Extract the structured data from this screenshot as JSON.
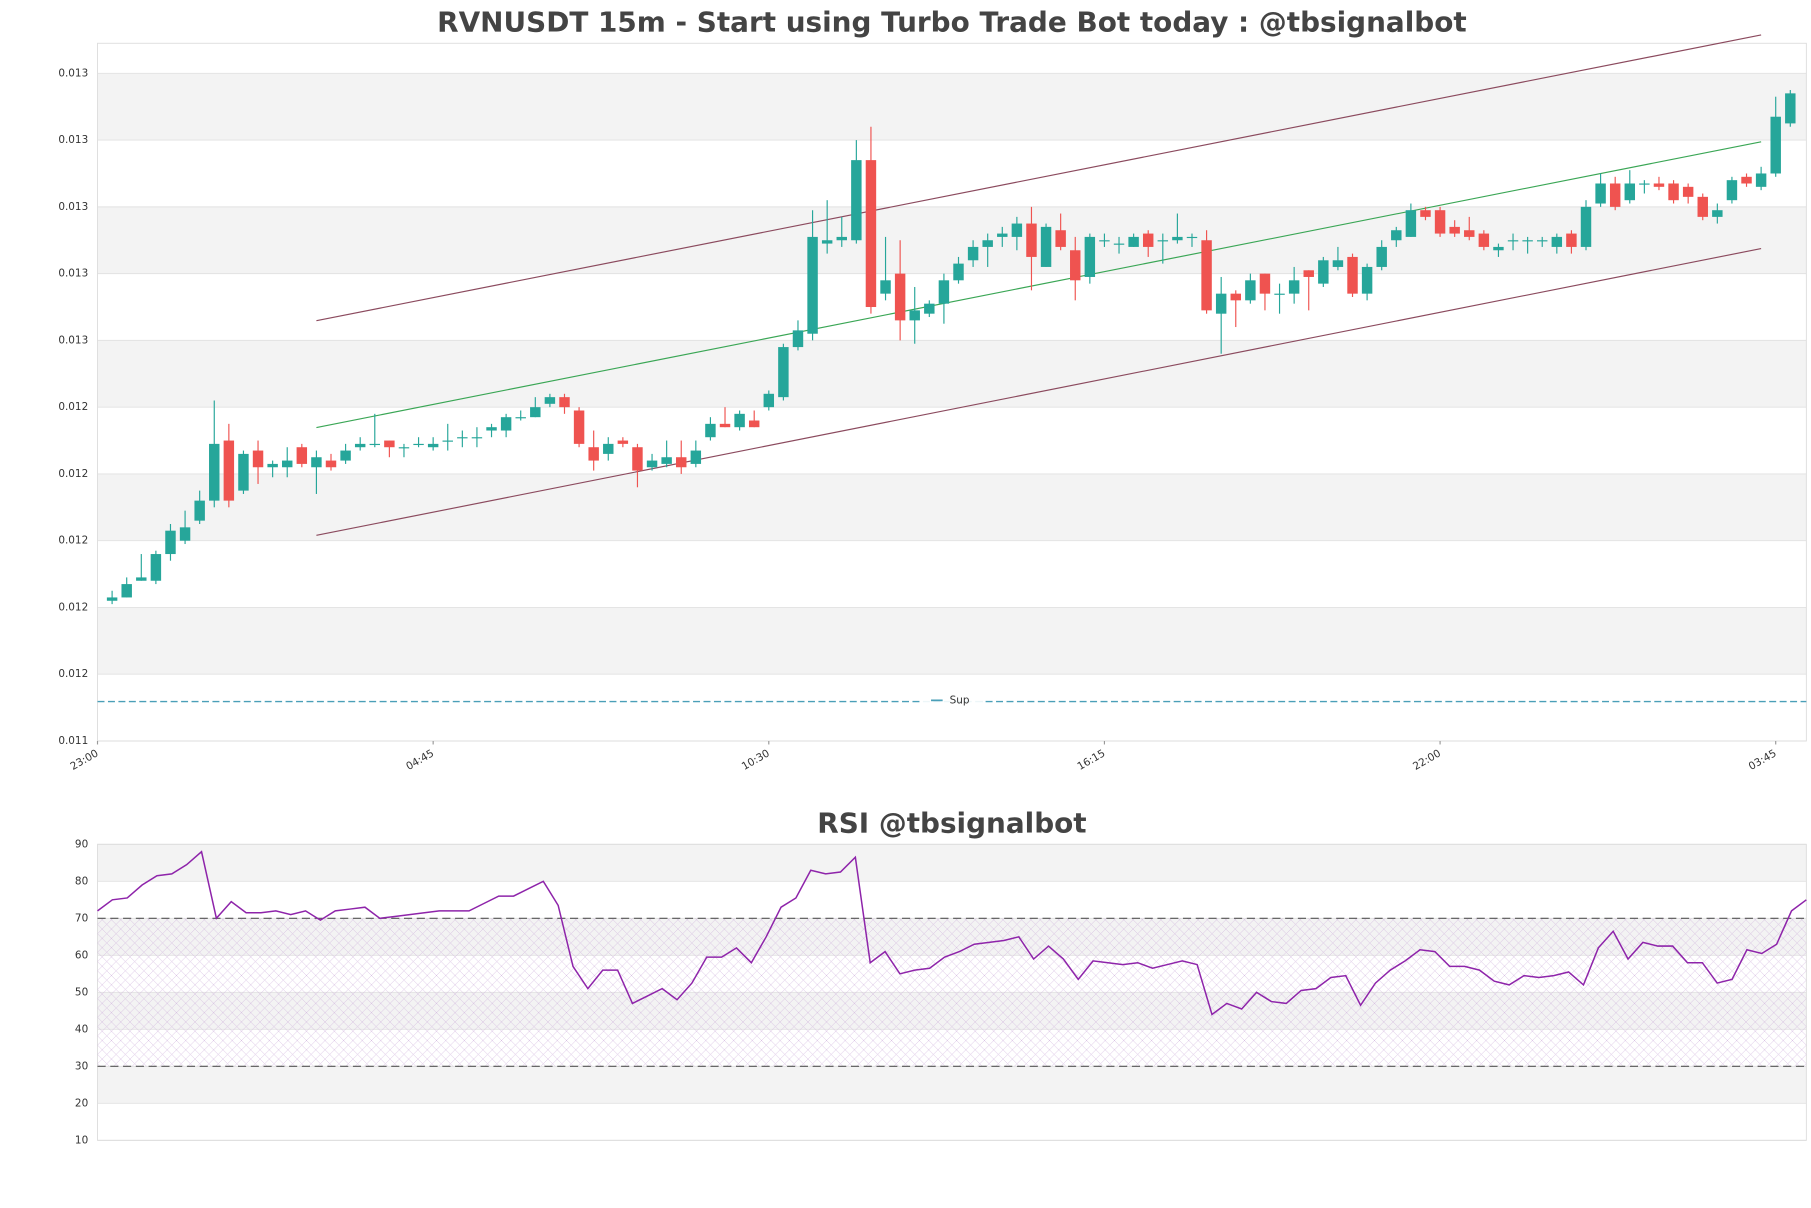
{
  "chart_data": [
    {
      "type": "candlestick",
      "title": "RVNUSDT 15m - Start using Turbo Trade Bot today : @tbsignalbot",
      "x": [
        1,
        2,
        3,
        4,
        5,
        6,
        7,
        8,
        9,
        10,
        11,
        12,
        13,
        14,
        15,
        16,
        17,
        18,
        19,
        20,
        21,
        22,
        23,
        24,
        25,
        26,
        27,
        28,
        29,
        30,
        31,
        32,
        33,
        34,
        35,
        36,
        37,
        38,
        39,
        40,
        41,
        42,
        43,
        44,
        45,
        46,
        47,
        48,
        49,
        50,
        51,
        52,
        53,
        54,
        55,
        56,
        57,
        58,
        59,
        60,
        61,
        62,
        63,
        64,
        65,
        66,
        67,
        68,
        69,
        70,
        71,
        72,
        73,
        74,
        75,
        76,
        77,
        78,
        79,
        80,
        81,
        82,
        83,
        84,
        85,
        86,
        87,
        88,
        89,
        90,
        91,
        92,
        93,
        94,
        95,
        96,
        97,
        98,
        99,
        100,
        101,
        102,
        103,
        104,
        105,
        106,
        107,
        108,
        109,
        110,
        111,
        112,
        113,
        114,
        115,
        116
      ],
      "open": [
        0.01182,
        0.01183,
        0.01188,
        0.01188,
        0.01196,
        0.012,
        0.01206,
        0.01212,
        0.0123,
        0.01215,
        0.01227,
        0.01222,
        0.01222,
        0.01228,
        0.01222,
        0.01224,
        0.01224,
        0.01228,
        0.01229,
        0.0123,
        0.01228,
        0.01229,
        0.01228,
        0.0123,
        0.01231,
        0.01231,
        0.01233,
        0.01233,
        0.01237,
        0.01237,
        0.01241,
        0.01243,
        0.01239,
        0.01228,
        0.01226,
        0.0123,
        0.01228,
        0.01222,
        0.01223,
        0.01225,
        0.01223,
        0.01231,
        0.01235,
        0.01234,
        0.01236,
        0.0124,
        0.01243,
        0.01258,
        0.01262,
        0.01289,
        0.0129,
        0.0129,
        0.01314,
        0.01274,
        0.0128,
        0.01266,
        0.01268,
        0.01271,
        0.01278,
        0.01284,
        0.01288,
        0.01291,
        0.01291,
        0.01295,
        0.01282,
        0.01293,
        0.01287,
        0.01279,
        0.0129,
        0.01289,
        0.01288,
        0.01292,
        0.0129,
        0.0129,
        0.01291,
        0.0129,
        0.01268,
        0.01274,
        0.01272,
        0.0128,
        0.01274,
        0.01274,
        0.01281,
        0.01277,
        0.01282,
        0.01285,
        0.01274,
        0.01282,
        0.0129,
        0.01291,
        0.01299,
        0.01299,
        0.01294,
        0.01293,
        0.01292,
        0.01287,
        0.0129,
        0.0129,
        0.0129,
        0.01288,
        0.01292,
        0.01288,
        0.01301,
        0.01307,
        0.01302,
        0.01307,
        0.01307,
        0.01307,
        0.01306,
        0.01303,
        0.01297,
        0.01302,
        0.01309,
        0.01306,
        0.0131,
        0.01325
      ],
      "high": [
        0.01185,
        0.01189,
        0.01196,
        0.01197,
        0.01205,
        0.01209,
        0.01215,
        0.01242,
        0.01235,
        0.01227,
        0.0123,
        0.01224,
        0.01228,
        0.01229,
        0.01227,
        0.01226,
        0.01229,
        0.01231,
        0.01238,
        0.0123,
        0.01229,
        0.01231,
        0.01231,
        0.01235,
        0.01233,
        0.01234,
        0.01235,
        0.01238,
        0.01239,
        0.01243,
        0.01244,
        0.01244,
        0.0124,
        0.01233,
        0.01231,
        0.01231,
        0.01229,
        0.01226,
        0.0123,
        0.0123,
        0.0123,
        0.01237,
        0.0124,
        0.01239,
        0.01239,
        0.01245,
        0.01259,
        0.01266,
        0.01299,
        0.01302,
        0.01297,
        0.0132,
        0.01324,
        0.01291,
        0.0129,
        0.01276,
        0.01272,
        0.0128,
        0.01285,
        0.0129,
        0.01292,
        0.01294,
        0.01297,
        0.013,
        0.01295,
        0.01298,
        0.01291,
        0.01292,
        0.01292,
        0.01291,
        0.01292,
        0.01293,
        0.01292,
        0.01298,
        0.01292,
        0.01293,
        0.01279,
        0.01275,
        0.0128,
        0.0128,
        0.01277,
        0.01282,
        0.01281,
        0.01285,
        0.01288,
        0.01286,
        0.01283,
        0.0129,
        0.01294,
        0.01301,
        0.013,
        0.013,
        0.01296,
        0.01297,
        0.01293,
        0.01289,
        0.01292,
        0.01291,
        0.01291,
        0.01292,
        0.01293,
        0.01302,
        0.0131,
        0.01309,
        0.01311,
        0.01308,
        0.01309,
        0.01308,
        0.01307,
        0.01304,
        0.01301,
        0.01309,
        0.0131,
        0.01312,
        0.01333,
        0.01335
      ],
      "low": [
        0.01181,
        0.01183,
        0.01188,
        0.01187,
        0.01194,
        0.01199,
        0.01205,
        0.0121,
        0.0121,
        0.01214,
        0.01217,
        0.01219,
        0.01219,
        0.01222,
        0.01214,
        0.01221,
        0.01223,
        0.01227,
        0.01228,
        0.01225,
        0.01225,
        0.01228,
        0.01227,
        0.01227,
        0.01228,
        0.01228,
        0.01231,
        0.01231,
        0.01236,
        0.01237,
        0.0124,
        0.01238,
        0.01228,
        0.01221,
        0.01224,
        0.01228,
        0.01216,
        0.01221,
        0.01222,
        0.0122,
        0.01222,
        0.0123,
        0.01234,
        0.01233,
        0.01234,
        0.01239,
        0.01242,
        0.01257,
        0.0126,
        0.01286,
        0.01288,
        0.01289,
        0.01268,
        0.01272,
        0.0126,
        0.01259,
        0.01267,
        0.01265,
        0.01277,
        0.01282,
        0.01282,
        0.01288,
        0.01287,
        0.01275,
        0.01282,
        0.01287,
        0.01272,
        0.01277,
        0.01288,
        0.01286,
        0.01288,
        0.01285,
        0.01283,
        0.01289,
        0.01288,
        0.01268,
        0.01256,
        0.01264,
        0.01271,
        0.01269,
        0.01268,
        0.01271,
        0.01269,
        0.01276,
        0.01281,
        0.01273,
        0.01272,
        0.01281,
        0.01288,
        0.01291,
        0.01296,
        0.01291,
        0.01291,
        0.0129,
        0.01287,
        0.01285,
        0.01287,
        0.01286,
        0.01288,
        0.01286,
        0.01286,
        0.01287,
        0.013,
        0.01299,
        0.01301,
        0.01304,
        0.01305,
        0.01301,
        0.01301,
        0.01296,
        0.01295,
        0.01301,
        0.01306,
        0.01305,
        0.01309,
        0.01324
      ],
      "close": [
        0.01183,
        0.01187,
        0.01189,
        0.01196,
        0.01203,
        0.01204,
        0.01212,
        0.01229,
        0.01212,
        0.01226,
        0.01222,
        0.01223,
        0.01224,
        0.01223,
        0.01225,
        0.01222,
        0.01227,
        0.01229,
        0.01229,
        0.01228,
        0.01228,
        0.01229,
        0.01229,
        0.0123,
        0.01231,
        0.01231,
        0.01234,
        0.01237,
        0.01237,
        0.0124,
        0.01243,
        0.0124,
        0.01229,
        0.01224,
        0.01229,
        0.01229,
        0.01221,
        0.01224,
        0.01225,
        0.01222,
        0.01227,
        0.01235,
        0.01234,
        0.01238,
        0.01234,
        0.01244,
        0.01258,
        0.01263,
        0.01291,
        0.0129,
        0.01291,
        0.01314,
        0.0127,
        0.01278,
        0.01266,
        0.01269,
        0.01271,
        0.01278,
        0.01283,
        0.01288,
        0.0129,
        0.01292,
        0.01295,
        0.01285,
        0.01294,
        0.01288,
        0.01278,
        0.01291,
        0.0129,
        0.01289,
        0.01291,
        0.01288,
        0.0129,
        0.01291,
        0.01291,
        0.01269,
        0.01274,
        0.01272,
        0.01278,
        0.01274,
        0.01274,
        0.01278,
        0.01279,
        0.01284,
        0.01284,
        0.01274,
        0.01282,
        0.01288,
        0.01293,
        0.01299,
        0.01297,
        0.01292,
        0.01292,
        0.01291,
        0.01288,
        0.01288,
        0.0129,
        0.0129,
        0.0129,
        0.01291,
        0.01288,
        0.013,
        0.01307,
        0.013,
        0.01307,
        0.01307,
        0.01306,
        0.01302,
        0.01303,
        0.01297,
        0.01299,
        0.01308,
        0.01307,
        0.0131,
        0.01327,
        0.01334
      ],
      "up_color": "#26a69a",
      "down_color": "#ef5350",
      "xlim": [
        0,
        117.1
      ],
      "xticks": [
        {
          "value": 0,
          "label": "23:00"
        },
        {
          "value": 23,
          "label": "04:45"
        },
        {
          "value": 46,
          "label": "10:30"
        },
        {
          "value": 69,
          "label": "16:15"
        },
        {
          "value": 92,
          "label": "22:00"
        },
        {
          "value": 115,
          "label": "03:45"
        }
      ],
      "ylim": [
        0.0114,
        0.01349
      ],
      "yticks": [
        {
          "value": 0.0114,
          "label": "0.011"
        },
        {
          "value": 0.0116,
          "label": "0.012"
        },
        {
          "value": 0.0118,
          "label": "0.012"
        },
        {
          "value": 0.012,
          "label": "0.012"
        },
        {
          "value": 0.0122,
          "label": "0.012"
        },
        {
          "value": 0.0124,
          "label": "0.012"
        },
        {
          "value": 0.0126,
          "label": "0.013"
        },
        {
          "value": 0.0128,
          "label": "0.013"
        },
        {
          "value": 0.013,
          "label": "0.013"
        },
        {
          "value": 0.0132,
          "label": "0.013"
        },
        {
          "value": 0.0134,
          "label": "0.013"
        }
      ],
      "grid": true,
      "lines": [
        {
          "color": "#8b4a5e",
          "x": [
            15,
            114
          ],
          "values": [
            0.012659,
            0.013515
          ]
        },
        {
          "color": "#3aa655",
          "x": [
            15,
            114
          ],
          "values": [
            0.012339,
            0.013195
          ]
        },
        {
          "color": "#8b4a5e",
          "x": [
            15,
            114
          ],
          "values": [
            0.012016,
            0.012875
          ]
        }
      ],
      "hlines": [
        {
          "name": "Sup",
          "color": "#4a9fb8",
          "value": 0.011518
        }
      ],
      "legend": "lower center"
    },
    {
      "type": "line",
      "title": "RSI @tbsignalbot",
      "values": [
        72,
        75,
        75.5,
        79,
        81.5,
        82,
        84.5,
        88,
        70,
        74.5,
        71.5,
        71.5,
        72,
        71,
        72,
        69.5,
        72,
        72.5,
        73,
        70,
        70.5,
        71,
        71.5,
        72,
        72,
        72,
        74,
        76,
        76,
        78,
        80,
        73.5,
        57,
        51,
        56,
        56,
        47,
        49,
        51,
        48,
        52.5,
        59.5,
        59.5,
        62,
        58,
        65,
        73,
        75.5,
        83,
        82,
        82.5,
        86.5,
        58,
        61,
        55,
        56,
        56.5,
        59.5,
        61,
        63,
        63.5,
        64,
        65,
        59,
        62.5,
        59,
        53.5,
        58.5,
        58,
        57.5,
        58,
        56.5,
        57.5,
        58.5,
        57.5,
        44,
        47,
        45.5,
        50,
        47.5,
        47,
        50.5,
        51,
        54,
        54.5,
        46.5,
        52.5,
        56,
        58.5,
        61.5,
        61,
        57,
        57,
        56,
        53,
        52,
        54.5,
        54,
        54.5,
        55.5,
        52,
        62,
        66.5,
        59,
        63.5,
        62.5,
        62.5,
        58,
        58,
        52.5,
        53.5,
        61.5,
        60.5,
        63,
        72,
        75
      ],
      "color": "#8e24aa",
      "xlim": [
        0,
        115
      ],
      "ylim": [
        10,
        90
      ],
      "yticks": [
        10,
        20,
        30,
        40,
        50,
        60,
        70,
        80,
        90
      ],
      "grid": true,
      "hlines": [
        70,
        30
      ],
      "band": [
        30,
        70
      ]
    }
  ]
}
